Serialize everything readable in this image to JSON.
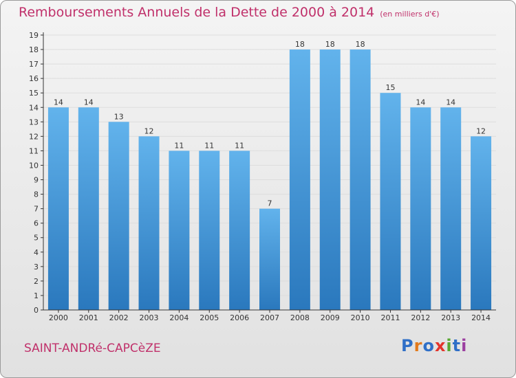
{
  "title": "Remboursements Annuels de la Dette de 2000 à 2014",
  "unit": "(en milliers d'€)",
  "commune": "SAINT-ANDRé-CAPCèZE",
  "logo": {
    "letters": [
      "P",
      "r",
      "o",
      "x",
      "i",
      "t",
      "i"
    ],
    "colors": [
      "#2f6fc7",
      "#e37a1c",
      "#2f6fc7",
      "#e3342b",
      "#58a832",
      "#2f6fc7",
      "#9b3fa0"
    ]
  },
  "colors": {
    "title": "#c0306a",
    "bar_top": "#62b3ec",
    "bar_bottom": "#2a78bd",
    "axis": "#333333",
    "grid": "#dddddd"
  },
  "chart_data": {
    "type": "bar",
    "categories": [
      "2000",
      "2001",
      "2002",
      "2003",
      "2004",
      "2005",
      "2006",
      "2007",
      "2008",
      "2009",
      "2010",
      "2011",
      "2012",
      "2013",
      "2014"
    ],
    "values": [
      14,
      14,
      13,
      12,
      11,
      11,
      11,
      7,
      18,
      18,
      18,
      15,
      14,
      14,
      12
    ],
    "ylim": [
      0,
      19
    ],
    "yticks": [
      0,
      1,
      2,
      3,
      4,
      5,
      6,
      7,
      8,
      9,
      10,
      11,
      12,
      13,
      14,
      15,
      16,
      17,
      18,
      19
    ],
    "grid": true,
    "legend": "none"
  }
}
